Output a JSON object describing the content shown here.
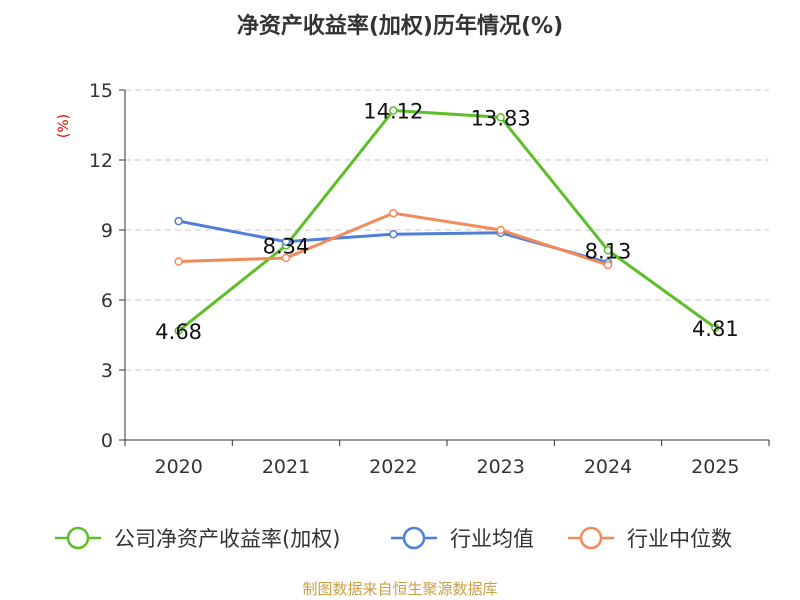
{
  "chart_data": {
    "type": "line",
    "title": "净资产收益率(加权)历年情况(%)",
    "ylabel": "(%)",
    "xlabel": "",
    "categories": [
      "2020",
      "2021",
      "2022",
      "2023",
      "2024",
      "2025"
    ],
    "ylim": [
      0,
      15
    ],
    "yticks": [
      "0",
      "3",
      "6",
      "9",
      "12",
      "15"
    ],
    "grid": true,
    "legend_position": "bottom",
    "series": [
      {
        "name": "公司净资产收益率(加权)",
        "color": "#5cbf2a",
        "values": [
          4.68,
          8.34,
          14.12,
          13.83,
          8.13,
          4.81
        ],
        "labels": [
          "4.68",
          "8.34",
          "14.12",
          "13.83",
          "8.13",
          "4.81"
        ]
      },
      {
        "name": "行业均值",
        "color": "#4f7fd8",
        "values": [
          9.38,
          8.5,
          8.82,
          8.88,
          7.6,
          null
        ]
      },
      {
        "name": "行业中位数",
        "color": "#f28a5a",
        "values": [
          7.65,
          7.8,
          9.72,
          9.0,
          7.5,
          null
        ]
      }
    ],
    "source": "制图数据来自恒生聚源数据库"
  }
}
